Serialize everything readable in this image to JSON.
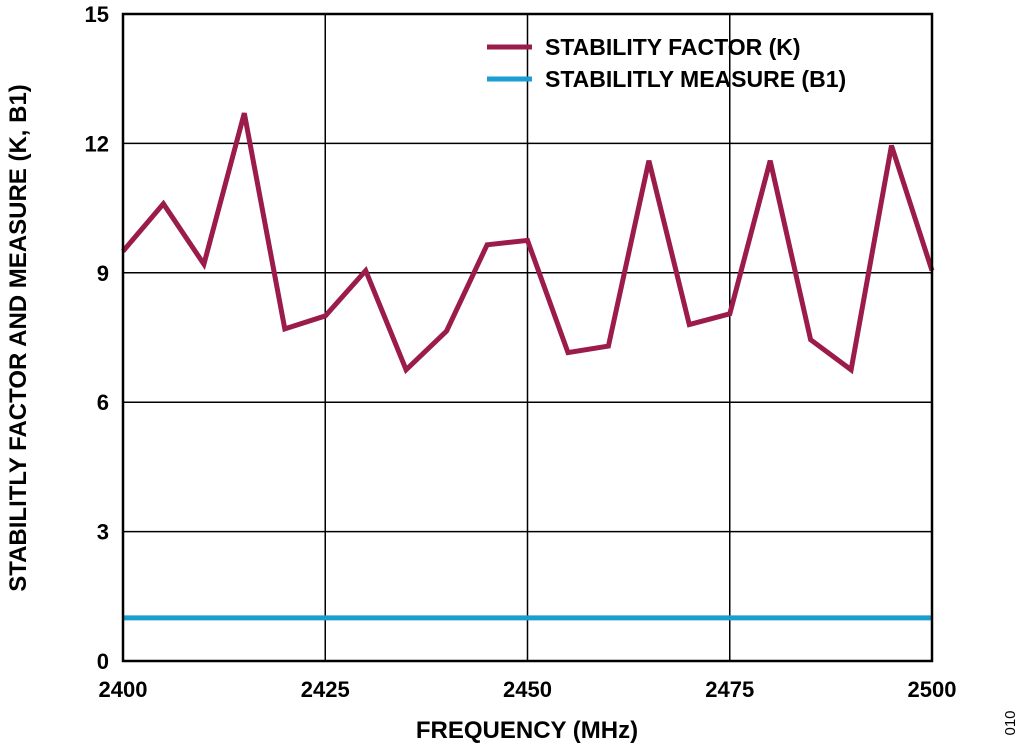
{
  "figure_id": "010",
  "chart_data": {
    "type": "line",
    "title": "",
    "xlabel": "FREQUENCY (MHz)",
    "ylabel": "STABILITLY FACTOR AND MEASURE (K, B1)",
    "xlim": [
      2400,
      2500
    ],
    "ylim": [
      0,
      15
    ],
    "xticks": [
      2400,
      2425,
      2450,
      2475,
      2500
    ],
    "yticks": [
      0,
      3,
      6,
      9,
      12,
      15
    ],
    "grid": true,
    "legend_position": "top-right",
    "series": [
      {
        "name": "STABILITY FACTOR (K)",
        "color": "#9b1b4a",
        "x": [
          2400,
          2405,
          2410,
          2415,
          2420,
          2425,
          2430,
          2435,
          2440,
          2445,
          2450,
          2455,
          2460,
          2465,
          2470,
          2475,
          2480,
          2485,
          2490,
          2495,
          2500
        ],
        "y": [
          9.5,
          10.6,
          9.2,
          12.7,
          7.7,
          8.0,
          9.05,
          6.75,
          7.65,
          9.65,
          9.75,
          7.15,
          7.3,
          11.6,
          7.8,
          8.05,
          11.6,
          7.45,
          6.75,
          11.95,
          9.05
        ]
      },
      {
        "name": "STABILITLY MEASURE (B1)",
        "color": "#1a9dd0",
        "x": [
          2400,
          2500
        ],
        "y": [
          1.0,
          1.0
        ]
      }
    ]
  }
}
